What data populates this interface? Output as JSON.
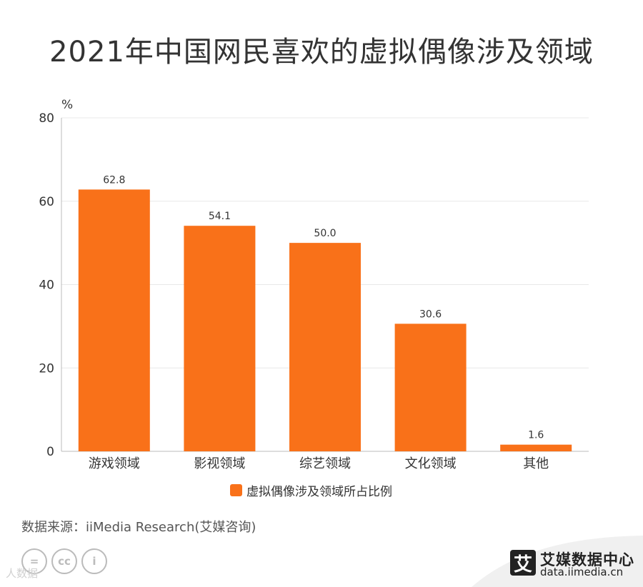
{
  "title": "2021年中国网民喜欢的虚拟偶像涉及领域",
  "unit": "%",
  "source": "数据来源：iiMedia Research(艾媒咨询)",
  "watermark": "人数据",
  "logo": {
    "glyph": "艾",
    "name": "艾媒数据中心",
    "site": "data.iimedia.cn"
  },
  "cc_icons": [
    "=",
    "cc",
    "i"
  ],
  "colors": {
    "bar": "#f97119",
    "grid": "#e8e8e8",
    "axis": "#bbbbbb",
    "corner": "#f0f0f0"
  },
  "chart_data": {
    "type": "bar",
    "categories": [
      "游戏领域",
      "影视领域",
      "综艺领域",
      "文化领域",
      "其他"
    ],
    "series": [
      {
        "name": "虚拟偶像涉及领域所占比例",
        "values": [
          62.8,
          54.1,
          50.0,
          30.6,
          1.6
        ]
      }
    ],
    "ylim": [
      0,
      80
    ],
    "yticks": [
      0,
      20,
      40,
      60,
      80
    ],
    "ylabel": "%",
    "grid": true,
    "legend": "bottom"
  }
}
